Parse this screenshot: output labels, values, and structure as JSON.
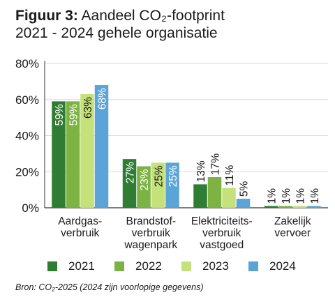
{
  "title": {
    "prefix": "Figuur 3:",
    "line1_rest": "Aandeel CO₂-footprint",
    "line2": "2021 - 2024 gehele organisatie"
  },
  "source": "Bron: CO₂-2025 (2024 zijn voorlopige gegevens)",
  "colors": {
    "2021": "#2e7d32",
    "2022": "#7cb342",
    "2023": "#c5e17a",
    "2024": "#5aa4d8",
    "axis": "#333333",
    "grid": "#d9d9d9"
  },
  "chart_data": {
    "type": "bar",
    "title": "Aandeel CO₂-footprint 2021 - 2024 gehele organisatie",
    "ylim": [
      0,
      80
    ],
    "yticks": [
      "0%",
      "20%",
      "40%",
      "60%",
      "80%"
    ],
    "ytick_values": [
      0,
      20,
      40,
      60,
      80
    ],
    "grid": true,
    "legend_position": "bottom",
    "categories": [
      [
        "Aardgas-",
        "verbruik"
      ],
      [
        "Brandstof-",
        "verbruik",
        "wagenpark"
      ],
      [
        "Elektriciteits-",
        "verbruik",
        "vastgoed"
      ],
      [
        "Zakelijk",
        "vervoer"
      ]
    ],
    "series": [
      {
        "name": "2021",
        "values": [
          59,
          27,
          13,
          1
        ],
        "labels": [
          "59%",
          "27%",
          "13%",
          "1%"
        ]
      },
      {
        "name": "2022",
        "values": [
          59,
          23,
          17,
          1
        ],
        "labels": [
          "59%",
          "23%",
          "17%",
          "1%"
        ]
      },
      {
        "name": "2023",
        "values": [
          63,
          25,
          11,
          1
        ],
        "labels": [
          "63%",
          "25%",
          "11%",
          "1%"
        ]
      },
      {
        "name": "2024",
        "values": [
          68,
          25,
          5,
          1
        ],
        "labels": [
          "68%",
          "25%",
          "5%",
          "1%"
        ]
      }
    ]
  }
}
